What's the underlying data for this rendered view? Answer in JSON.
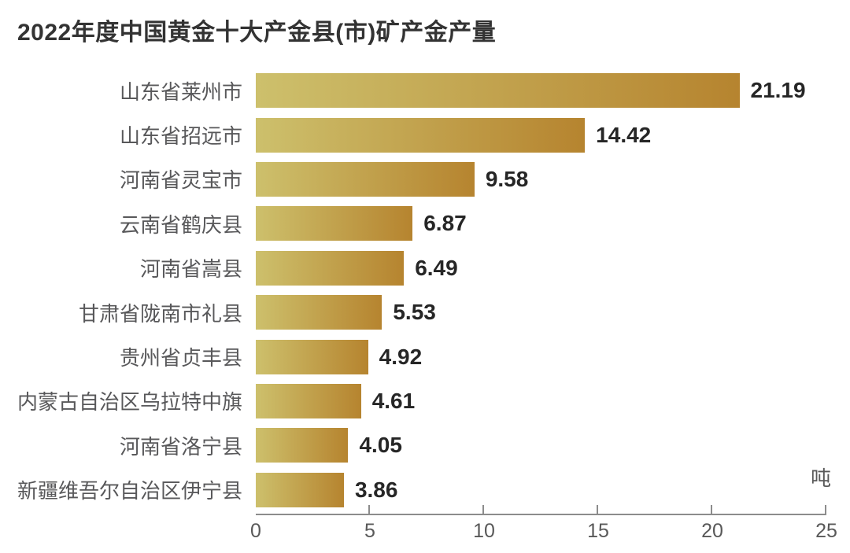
{
  "title": "2022年度中国黄金十大产金县(市)矿产金产量",
  "unit_label": "吨",
  "colors": {
    "bar_gradient_start": "#cdc06c",
    "bar_gradient_end": "#b6842f",
    "title_text": "#333333",
    "category_text": "#58585a",
    "value_text": "#262626",
    "axis": "#8c8c8c",
    "tick_text": "#595959",
    "background": "#ffffff"
  },
  "chart_data": {
    "type": "bar",
    "orientation": "horizontal",
    "title": "2022年度中国黄金十大产金县(市)矿产金产量",
    "categories": [
      "山东省莱州市",
      "山东省招远市",
      "河南省灵宝市",
      "云南省鹤庆县",
      "河南省嵩县",
      "甘肃省陇南市礼县",
      "贵州省贞丰县",
      "内蒙古自治区乌拉特中旗",
      "河南省洛宁县",
      "新疆维吾尔自治区伊宁县"
    ],
    "values": [
      21.19,
      14.42,
      9.58,
      6.87,
      6.49,
      5.53,
      4.92,
      4.61,
      4.05,
      3.86
    ],
    "xlabel": "吨",
    "ylabel": "",
    "xlim": [
      0,
      25
    ],
    "xticks": [
      0,
      5,
      10,
      15,
      20,
      25
    ],
    "grid": false,
    "legend": false,
    "value_labels_shown": true,
    "bar_style": "gold gradient, light left to dark amber right"
  }
}
